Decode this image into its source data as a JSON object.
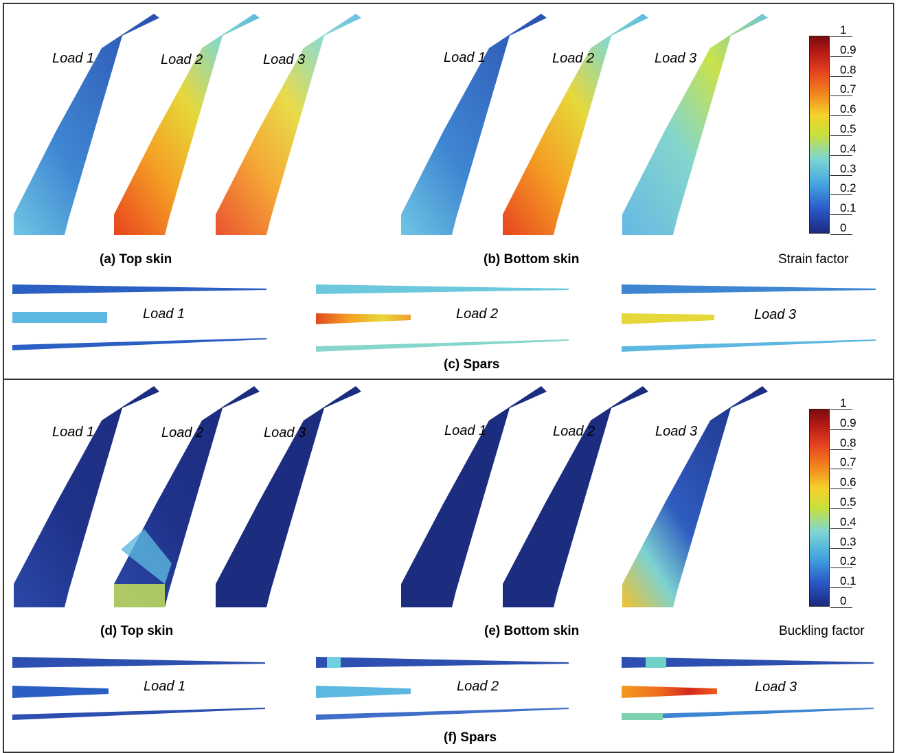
{
  "top": {
    "load_labels": [
      "Load 1",
      "Load 2",
      "Load 3",
      "Load 1",
      "Load 2",
      "Load 3"
    ],
    "caption_a": "(a) Top skin",
    "caption_b": "(b) Bottom skin",
    "caption_c": "(c) Spars",
    "spar_labels": [
      "Load 1",
      "Load 2",
      "Load 3"
    ],
    "colorbar_title": "Strain factor"
  },
  "bottom": {
    "load_labels": [
      "Load 1",
      "Load 2",
      "Load 3",
      "Load 1",
      "Load 2",
      "Load 3"
    ],
    "caption_d": "(d) Top skin",
    "caption_e": "(e) Bottom skin",
    "caption_f": "(f) Spars",
    "spar_labels": [
      "Load 1",
      "Load 2",
      "Load 3"
    ],
    "colorbar_title": "Buckling factor"
  },
  "colorbar_ticks": [
    "1",
    "0.9",
    "0.8",
    "0.7",
    "0.6",
    "0.5",
    "0.4",
    "0.3",
    "0.2",
    "0.1",
    "0"
  ],
  "colors": {
    "dark_blue": "#1e2f8a",
    "blue": "#2c5fc4",
    "light_blue": "#5cc2e6",
    "cyan": "#8fdbd4",
    "green_yellow": "#cde43a",
    "yellow": "#f4d52a",
    "orange": "#f0791e",
    "red_orange": "#e0491d"
  }
}
